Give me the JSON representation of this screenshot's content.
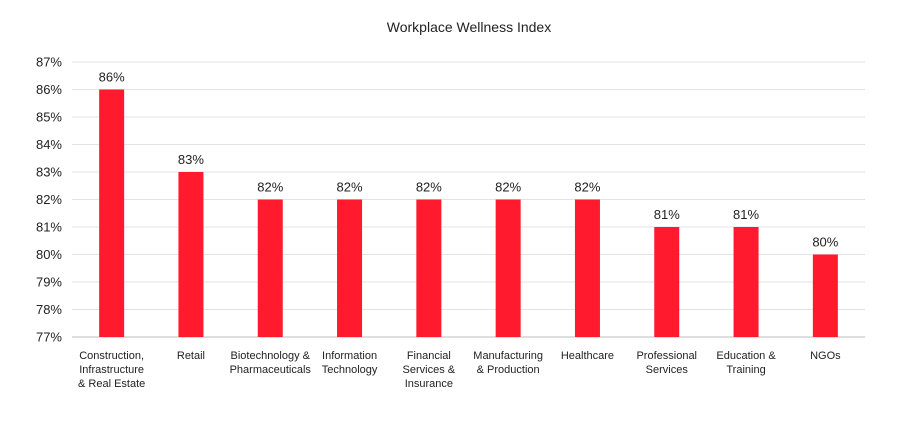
{
  "chart_data": {
    "type": "bar",
    "title": "Workplace Wellness Index",
    "xlabel": "",
    "ylabel": "",
    "categories": [
      [
        "Construction,",
        "Infrastructure",
        "& Real Estate"
      ],
      [
        "Retail"
      ],
      [
        "Biotechnology &",
        "Pharmaceuticals"
      ],
      [
        "Information",
        "Technology"
      ],
      [
        "Financial",
        "Services &",
        "Insurance"
      ],
      [
        "Manufacturing",
        "& Production"
      ],
      [
        "Healthcare"
      ],
      [
        "Professional",
        "Services"
      ],
      [
        "Education &",
        "Training"
      ],
      [
        "NGOs"
      ]
    ],
    "values": [
      86,
      83,
      82,
      82,
      82,
      82,
      82,
      81,
      81,
      80
    ],
    "data_labels": [
      "86%",
      "83%",
      "82%",
      "82%",
      "82%",
      "82%",
      "82%",
      "81%",
      "81%",
      "80%"
    ],
    "y_ticks": [
      "77%",
      "78%",
      "79%",
      "80%",
      "81%",
      "82%",
      "83%",
      "84%",
      "85%",
      "86%",
      "87%"
    ],
    "ylim": [
      77,
      87
    ],
    "grid": true,
    "legend": "none",
    "bar_color": "#ff1a2e"
  }
}
